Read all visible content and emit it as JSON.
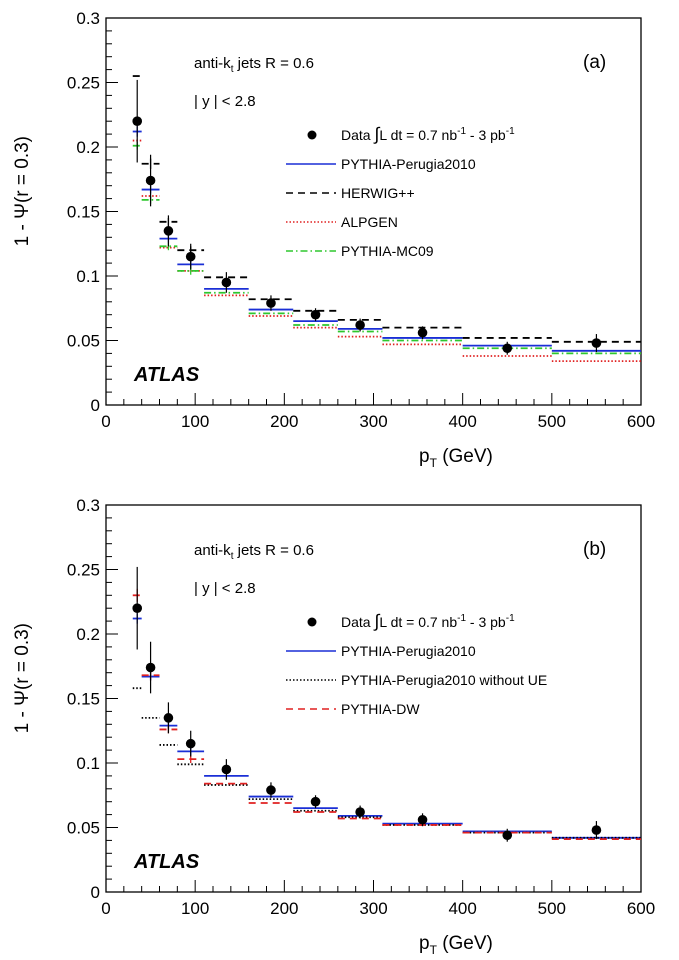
{
  "chart_data": [
    {
      "type": "scatter",
      "panel": "(a)",
      "xlabel": "p_T (GeV)",
      "ylabel": "1 - Ψ(r = 0.3)",
      "xlim": [
        0,
        600
      ],
      "ylim": [
        0,
        0.3
      ],
      "x_ticks": [
        "0",
        "100",
        "200",
        "300",
        "400",
        "500",
        "600"
      ],
      "y_ticks": [
        "0",
        "0.05",
        "0.1",
        "0.15",
        "0.2",
        "0.25",
        "0.3"
      ],
      "annotations": {
        "jets": "anti-k",
        "jets_sub": "t",
        "jets_rest": " jets R = 0.6",
        "rapidity": "| y | < 2.8",
        "experiment": "ATLAS"
      },
      "legend": {
        "placement": "top-right",
        "data_prefix": "Data ",
        "data_lumi": "L dt = 0.7 nb",
        "data_sup1": "-1",
        "data_mid": " - 3 pb",
        "data_sup2": "-1",
        "entries": [
          "PYTHIA-Perugia2010",
          "HERWIG++",
          "ALPGEN",
          "PYTHIA-MC09"
        ]
      },
      "bins": [
        [
          30,
          40
        ],
        [
          40,
          60
        ],
        [
          60,
          80
        ],
        [
          80,
          110
        ],
        [
          110,
          160
        ],
        [
          160,
          210
        ],
        [
          210,
          260
        ],
        [
          260,
          310
        ],
        [
          310,
          400
        ],
        [
          400,
          500
        ],
        [
          500,
          600
        ]
      ],
      "data": {
        "x": [
          35,
          50,
          70,
          95,
          135,
          185,
          235,
          285,
          355,
          450,
          550
        ],
        "y": [
          0.22,
          0.174,
          0.135,
          0.115,
          0.095,
          0.079,
          0.07,
          0.062,
          0.056,
          0.044,
          0.048
        ],
        "err": [
          0.032,
          0.02,
          0.012,
          0.01,
          0.008,
          0.006,
          0.005,
          0.005,
          0.005,
          0.005,
          0.007
        ]
      },
      "series": [
        {
          "name": "PYTHIA-Perugia2010",
          "color": "#1a2fd6",
          "style": "solid",
          "values": [
            0.212,
            0.167,
            0.129,
            0.109,
            0.09,
            0.074,
            0.065,
            0.059,
            0.052,
            0.046,
            0.042
          ],
          "errs": [
            0.004,
            0.003,
            0.003,
            0.003,
            0,
            0,
            0,
            0,
            0,
            0,
            0
          ]
        },
        {
          "name": "HERWIG++",
          "color": "#000000",
          "style": "dashed",
          "values": [
            0.255,
            0.187,
            0.142,
            0.12,
            0.099,
            0.082,
            0.073,
            0.066,
            0.06,
            0.052,
            0.049
          ],
          "errs": [
            0,
            0.004,
            0.003,
            0.003,
            0,
            0,
            0,
            0,
            0,
            0,
            0
          ]
        },
        {
          "name": "ALPGEN",
          "color": "#e02020",
          "style": "dotted",
          "values": [
            0.205,
            0.162,
            0.122,
            0.104,
            0.085,
            0.069,
            0.06,
            0.053,
            0.047,
            0.038,
            0.034
          ],
          "errs": [
            0,
            0,
            0,
            0,
            0,
            0,
            0,
            0,
            0,
            0,
            0
          ]
        },
        {
          "name": "PYTHIA-MC09",
          "color": "#2ec72e",
          "style": "dashdot",
          "values": [
            0.201,
            0.159,
            0.123,
            0.104,
            0.087,
            0.071,
            0.062,
            0.057,
            0.05,
            0.044,
            0.04
          ],
          "errs": [
            0.003,
            0.003,
            0.003,
            0.003,
            0,
            0,
            0,
            0,
            0,
            0,
            0
          ]
        }
      ]
    },
    {
      "type": "scatter",
      "panel": "(b)",
      "xlabel": "p_T (GeV)",
      "ylabel": "1 - Ψ(r = 0.3)",
      "xlim": [
        0,
        600
      ],
      "ylim": [
        0,
        0.3
      ],
      "x_ticks": [
        "0",
        "100",
        "200",
        "300",
        "400",
        "500",
        "600"
      ],
      "y_ticks": [
        "0",
        "0.05",
        "0.1",
        "0.15",
        "0.2",
        "0.25",
        "0.3"
      ],
      "annotations": {
        "jets": "anti-k",
        "jets_sub": "t",
        "jets_rest": " jets R = 0.6",
        "rapidity": "| y | < 2.8",
        "experiment": "ATLAS"
      },
      "legend": {
        "placement": "top-right",
        "data_prefix": "Data ",
        "data_lumi": "L dt = 0.7 nb",
        "data_sup1": "-1",
        "data_mid": " - 3 pb",
        "data_sup2": "-1",
        "entries": [
          "PYTHIA-Perugia2010",
          "PYTHIA-Perugia2010 without UE",
          "PYTHIA-DW"
        ]
      },
      "bins": [
        [
          30,
          40
        ],
        [
          40,
          60
        ],
        [
          60,
          80
        ],
        [
          80,
          110
        ],
        [
          110,
          160
        ],
        [
          160,
          210
        ],
        [
          210,
          260
        ],
        [
          260,
          310
        ],
        [
          310,
          400
        ],
        [
          400,
          500
        ],
        [
          500,
          600
        ]
      ],
      "data": {
        "x": [
          35,
          50,
          70,
          95,
          135,
          185,
          235,
          285,
          355,
          450,
          550
        ],
        "y": [
          0.22,
          0.174,
          0.135,
          0.115,
          0.095,
          0.079,
          0.07,
          0.062,
          0.056,
          0.044,
          0.048
        ],
        "err": [
          0.032,
          0.02,
          0.012,
          0.01,
          0.008,
          0.006,
          0.005,
          0.005,
          0.005,
          0.005,
          0.007
        ]
      },
      "series": [
        {
          "name": "PYTHIA-Perugia2010",
          "color": "#1a2fd6",
          "style": "solid",
          "values": [
            0.212,
            0.167,
            0.129,
            0.109,
            0.09,
            0.074,
            0.065,
            0.059,
            0.053,
            0.047,
            0.042
          ],
          "errs": [
            0.004,
            0.003,
            0.003,
            0.003,
            0,
            0,
            0,
            0,
            0,
            0,
            0
          ]
        },
        {
          "name": "PYTHIA-Perugia2010 without UE",
          "color": "#000000",
          "style": "dotted",
          "values": [
            0.158,
            0.135,
            0.114,
            0.099,
            0.083,
            0.072,
            0.063,
            0.058,
            0.052,
            0.046,
            0.042
          ],
          "errs": [
            0,
            0,
            0,
            0,
            0,
            0,
            0,
            0,
            0,
            0,
            0
          ]
        },
        {
          "name": "PYTHIA-DW",
          "color": "#e02020",
          "style": "dashed",
          "values": [
            0.23,
            0.168,
            0.126,
            0.103,
            0.084,
            0.069,
            0.062,
            0.057,
            0.052,
            0.046,
            0.041
          ],
          "errs": [
            0.005,
            0.004,
            0.003,
            0.003,
            0,
            0,
            0,
            0,
            0,
            0,
            0
          ]
        }
      ]
    }
  ]
}
